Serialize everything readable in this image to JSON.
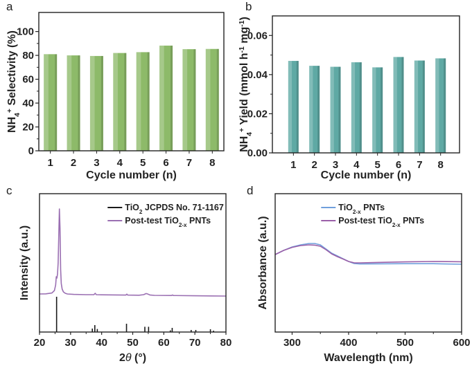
{
  "chart_data": [
    {
      "panel": "a",
      "type": "bar",
      "categories": [
        "1",
        "2",
        "3",
        "4",
        "5",
        "6",
        "7",
        "8"
      ],
      "values": [
        81.0,
        80.0,
        79.5,
        82.0,
        82.7,
        88.2,
        85.2,
        85.4
      ],
      "xlabel": [
        {
          "t": "Cycle number (n)"
        }
      ],
      "ylabel": [
        {
          "t": "NH"
        },
        {
          "t": "4",
          "sub": true
        },
        {
          "t": "+",
          "sup": true
        },
        {
          "t": " Selectivity (%)"
        }
      ],
      "yticks": [
        "0",
        "20",
        "40",
        "60",
        "80",
        "100"
      ],
      "ytick_values": [
        0,
        20,
        40,
        60,
        80,
        100
      ],
      "xlim": [
        0.5,
        8.5
      ],
      "ylim": [
        0,
        116
      ],
      "color": "#8dba69",
      "grid": false
    },
    {
      "panel": "b",
      "type": "bar",
      "categories": [
        "1",
        "2",
        "3",
        "4",
        "5",
        "6",
        "7",
        "8"
      ],
      "values": [
        0.047,
        0.0445,
        0.044,
        0.0463,
        0.0437,
        0.049,
        0.0472,
        0.0483
      ],
      "xlabel": [
        {
          "t": "Cycle number (n)"
        }
      ],
      "ylabel": [
        {
          "t": "NH"
        },
        {
          "t": "4",
          "sub": true
        },
        {
          "t": "+",
          "sup": true
        },
        {
          "t": " Yield (mmol h"
        },
        {
          "t": "-1",
          "sup": true
        },
        {
          "t": " mg"
        },
        {
          "t": "-1",
          "sup": true
        },
        {
          "t": ")"
        }
      ],
      "yticks": [
        "0.00",
        "0.02",
        "0.04",
        "0.06"
      ],
      "ytick_values": [
        0,
        0.02,
        0.04,
        0.06
      ],
      "xlim": [
        0,
        8.9
      ],
      "ylim": [
        0,
        0.07
      ],
      "color": "#5fa9a4",
      "grid": false
    },
    {
      "panel": "c",
      "type": "line",
      "xlabel": [
        {
          "t": "2"
        },
        {
          "t": "θ",
          "ital": true
        },
        {
          "t": " (°)"
        }
      ],
      "ylabel": [
        {
          "t": "Intensity (a.u.)"
        }
      ],
      "xticks": [
        "20",
        "30",
        "40",
        "50",
        "60",
        "70",
        "80"
      ],
      "xtick_values": [
        20,
        30,
        40,
        50,
        60,
        70,
        80
      ],
      "xlim": [
        20,
        80
      ],
      "ylim": [
        0,
        1
      ],
      "legend_position": "top-right",
      "series": [
        {
          "name": [
            {
              "t": "TiO"
            },
            {
              "t": "2",
              "sub": true
            },
            {
              "t": " JCPDS No. 71-1167"
            }
          ],
          "kind": "sticks",
          "color": "#1a1a1a",
          "x": [
            25.5,
            37.0,
            37.8,
            38.6,
            48.0,
            53.9,
            55.1,
            62.1,
            62.7,
            68.8,
            70.3,
            75.0,
            76.0
          ],
          "y": [
            0.255,
            0.025,
            0.05,
            0.022,
            0.06,
            0.038,
            0.038,
            0.012,
            0.03,
            0.015,
            0.015,
            0.02,
            0.01
          ]
        },
        {
          "name": [
            {
              "t": "Post-test TiO"
            },
            {
              "t": "2-x",
              "sub": true
            },
            {
              "t": " PNTs"
            }
          ],
          "kind": "line",
          "color": "#9a6fb2",
          "x": [
            20,
            22,
            24,
            24.8,
            25.2,
            25.4,
            25.6,
            25.8,
            26.0,
            26.2,
            26.4,
            26.6,
            26.8,
            27.0,
            27.3,
            27.7,
            28.3,
            29,
            31,
            35,
            37.5,
            37.9,
            38.3,
            40,
            45,
            47.8,
            48.1,
            48.4,
            52,
            53.5,
            54.3,
            54.7,
            55.5,
            57,
            62.5,
            62.8,
            63.1,
            70,
            75,
            80
          ],
          "y": [
            0.275,
            0.276,
            0.282,
            0.3,
            0.34,
            0.4,
            0.39,
            0.42,
            0.5,
            0.7,
            0.89,
            0.75,
            0.45,
            0.35,
            0.31,
            0.29,
            0.28,
            0.275,
            0.272,
            0.27,
            0.27,
            0.28,
            0.27,
            0.269,
            0.268,
            0.267,
            0.274,
            0.267,
            0.266,
            0.27,
            0.278,
            0.276,
            0.268,
            0.265,
            0.264,
            0.268,
            0.264,
            0.262,
            0.261,
            0.26
          ]
        }
      ]
    },
    {
      "panel": "d",
      "type": "line",
      "xlabel": [
        {
          "t": "Wavelength (nm)"
        }
      ],
      "ylabel": [
        {
          "t": "Absorbance (a.u.)"
        }
      ],
      "xticks": [
        "300",
        "400",
        "500",
        "600"
      ],
      "xtick_values": [
        300,
        400,
        500,
        600
      ],
      "xlim": [
        270,
        600
      ],
      "ylim": [
        0,
        1
      ],
      "legend_position": "top-right",
      "series": [
        {
          "name": [
            {
              "t": "TiO"
            },
            {
              "t": "2-x",
              "sub": true
            },
            {
              "t": " PNTs"
            }
          ],
          "kind": "line",
          "color": "#6f9fdc",
          "x": [
            270,
            285,
            300,
            315,
            330,
            340,
            350,
            360,
            370,
            380,
            390,
            400,
            410,
            420,
            450,
            500,
            550,
            600
          ],
          "y": [
            0.56,
            0.59,
            0.615,
            0.63,
            0.64,
            0.64,
            0.63,
            0.6,
            0.57,
            0.55,
            0.53,
            0.51,
            0.495,
            0.492,
            0.493,
            0.494,
            0.494,
            0.49
          ]
        },
        {
          "name": [
            {
              "t": "Post-test TiO"
            },
            {
              "t": "2-x",
              "sub": true
            },
            {
              "t": " PNTs"
            }
          ],
          "kind": "line",
          "color": "#9a5fa8",
          "x": [
            270,
            285,
            300,
            315,
            330,
            340,
            350,
            360,
            370,
            380,
            390,
            400,
            410,
            420,
            450,
            500,
            550,
            600
          ],
          "y": [
            0.56,
            0.59,
            0.612,
            0.625,
            0.63,
            0.628,
            0.62,
            0.595,
            0.565,
            0.545,
            0.528,
            0.51,
            0.5,
            0.5,
            0.503,
            0.507,
            0.51,
            0.508
          ]
        }
      ]
    }
  ]
}
